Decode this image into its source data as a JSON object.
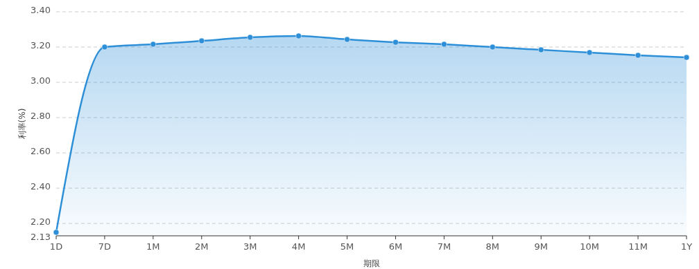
{
  "chart_data": {
    "type": "area",
    "xlabel": "期限",
    "ylabel": "利率(%)",
    "categories": [
      "1D",
      "7D",
      "1M",
      "2M",
      "3M",
      "4M",
      "5M",
      "6M",
      "7M",
      "8M",
      "9M",
      "10M",
      "11M",
      "1Y"
    ],
    "series": [
      {
        "color": "#2d8fd8",
        "values": [
          2.15,
          3.2,
          3.216,
          3.235,
          3.255,
          3.263,
          3.243,
          3.227,
          3.216,
          3.2,
          3.184,
          3.169,
          3.153,
          3.141
        ]
      }
    ],
    "ylim": [
      2.13,
      3.4
    ],
    "yticks": [
      2.13,
      {
        "value": 2.2,
        "label": "2.20"
      },
      {
        "value": 2.4,
        "label": "2.40"
      },
      {
        "value": 2.6,
        "label": "2.60"
      },
      {
        "value": 2.8,
        "label": "2.80"
      },
      {
        "value": 3.0,
        "label": "3.00"
      },
      {
        "value": 3.2,
        "label": "3.20"
      },
      {
        "value": 3.4,
        "label": "3.40"
      }
    ],
    "grid": "y",
    "marker": "circle",
    "line_style": "solid"
  }
}
